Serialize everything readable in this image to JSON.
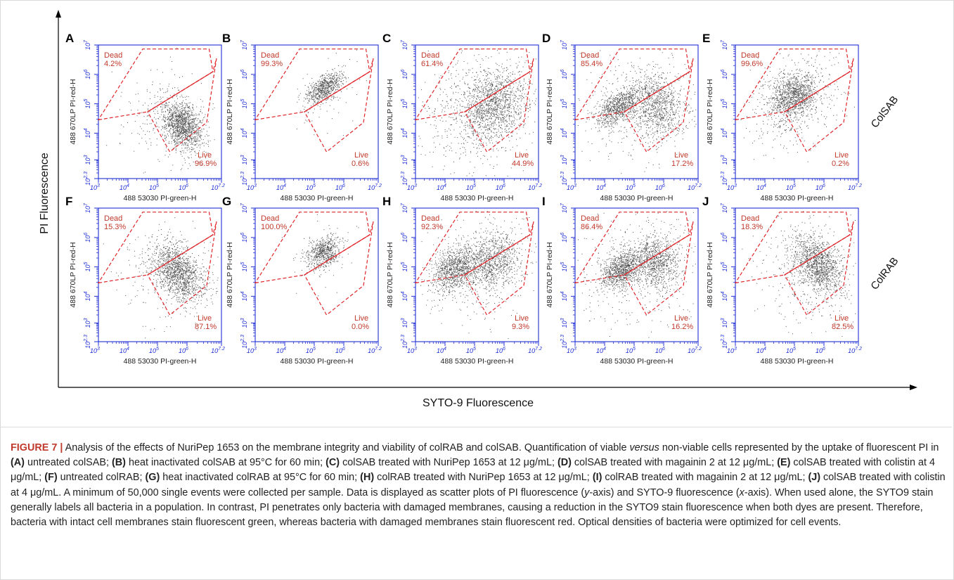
{
  "figure": {
    "y_axis_title": "PI Fluorescence",
    "x_axis_title": "SYTO-9 Fluorescence",
    "row_labels": [
      "ColSAB",
      "ColRAB"
    ],
    "plot_x_label": "488 53030 PI-green-H",
    "plot_y_label": "488 670LP PI-red-H",
    "axis_ticks": [
      "10^3",
      "10^4",
      "10^5",
      "10^6",
      "10^7.2"
    ],
    "y_axis_ticks": [
      "10^2.3",
      "10^3",
      "10^4",
      "10^5",
      "10^6",
      "10^7"
    ],
    "gate_labels": {
      "dead": "Dead",
      "live": "Live"
    },
    "colors": {
      "axis": "#1f2fd6",
      "gate": "#e0262b",
      "dots": "#1a1a1a",
      "label_red": "#c0392b"
    }
  },
  "chart_data": [
    {
      "type": "scatter",
      "panel": "A",
      "dead_percent": "4.2%",
      "live_percent": "96.9%"
    },
    {
      "type": "scatter",
      "panel": "B",
      "dead_percent": "99.3%",
      "live_percent": "0.6%"
    },
    {
      "type": "scatter",
      "panel": "C",
      "dead_percent": "61.4%",
      "live_percent": "44.9%"
    },
    {
      "type": "scatter",
      "panel": "D",
      "dead_percent": "85.4%",
      "live_percent": "17.2%"
    },
    {
      "type": "scatter",
      "panel": "E",
      "dead_percent": "99.6%",
      "live_percent": "0.2%"
    },
    {
      "type": "scatter",
      "panel": "F",
      "dead_percent": "15.3%",
      "live_percent": "87.1%"
    },
    {
      "type": "scatter",
      "panel": "G",
      "dead_percent": "100.0%",
      "live_percent": "0.0%"
    },
    {
      "type": "scatter",
      "panel": "H",
      "dead_percent": "92.3%",
      "live_percent": "9.3%"
    },
    {
      "type": "scatter",
      "panel": "I",
      "dead_percent": "86.4%",
      "live_percent": "16.2%"
    },
    {
      "type": "scatter",
      "panel": "J",
      "dead_percent": "18.3%",
      "live_percent": "82.5%"
    }
  ],
  "caption": {
    "figure_label": "FIGURE 7 |",
    "segments": [
      {
        "t": " Analysis of the effects of NuriPep 1653 on the membrane integrity and viability of colRAB and colSAB. Quantification of viable ",
        "s": ""
      },
      {
        "t": "versus",
        "s": "it"
      },
      {
        "t": " non-viable cells represented by the uptake of fluorescent PI in ",
        "s": ""
      },
      {
        "t": "(A)",
        "s": "b"
      },
      {
        "t": " untreated colSAB; ",
        "s": ""
      },
      {
        "t": "(B)",
        "s": "b"
      },
      {
        "t": " heat inactivated colSAB at 95°C for 60 min; ",
        "s": ""
      },
      {
        "t": "(C)",
        "s": "b"
      },
      {
        "t": " colSAB treated with NuriPep 1653 at 12 μg/mL; ",
        "s": ""
      },
      {
        "t": "(D)",
        "s": "b"
      },
      {
        "t": " colSAB treated with magainin 2 at 12 μg/mL; ",
        "s": ""
      },
      {
        "t": "(E)",
        "s": "b"
      },
      {
        "t": " colSAB treated with colistin at 4 μg/mL; ",
        "s": ""
      },
      {
        "t": "(F)",
        "s": "b"
      },
      {
        "t": " untreated colRAB; ",
        "s": ""
      },
      {
        "t": "(G)",
        "s": "b"
      },
      {
        "t": " heat inactivated colRAB at 95°C for 60 min; ",
        "s": ""
      },
      {
        "t": "(H)",
        "s": "b"
      },
      {
        "t": " colRAB treated with NuriPep 1653 at 12 μg/mL; ",
        "s": ""
      },
      {
        "t": "(I)",
        "s": "b"
      },
      {
        "t": " colRAB treated with magainin 2 at 12 μg/mL; ",
        "s": ""
      },
      {
        "t": "(J)",
        "s": "b"
      },
      {
        "t": " colSAB treated with colistin at 4 μg/mL. A minimum of 50,000 single events were collected per sample. Data is displayed as scatter plots of PI fluorescence (",
        "s": ""
      },
      {
        "t": "y",
        "s": "it"
      },
      {
        "t": "-axis) and SYTO-9 fluorescence (",
        "s": ""
      },
      {
        "t": "x",
        "s": "it"
      },
      {
        "t": "-axis). When used alone, the SYTO9 stain generally labels all bacteria in a population. In contrast, PI penetrates only bacteria with damaged membranes, causing a reduction in the SYTO9 stain fluorescence when both dyes are present. Therefore, bacteria with intact cell membranes stain fluorescent green, whereas bacteria with damaged membranes stain fluorescent red. Optical densities of bacteria were optimized for cell events.",
        "s": ""
      }
    ]
  }
}
